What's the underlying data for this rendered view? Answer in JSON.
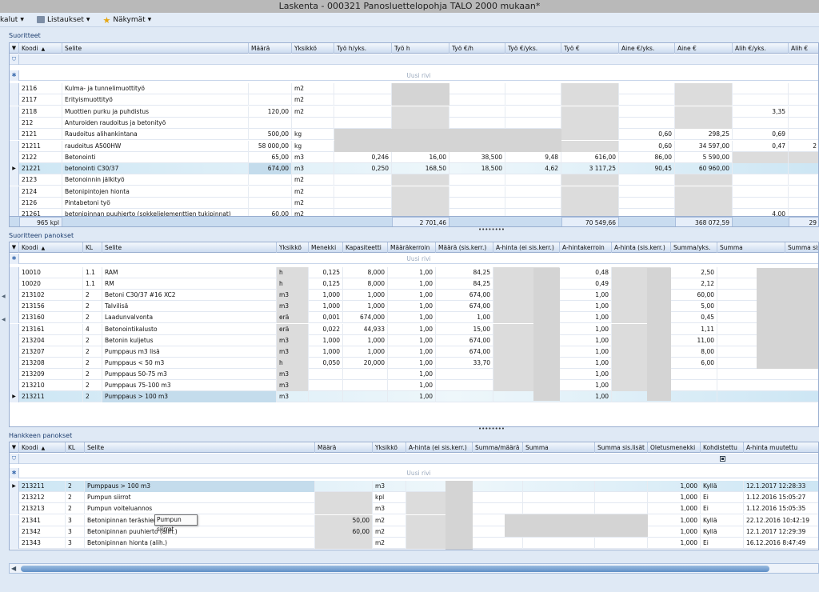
{
  "window": {
    "title": "Laskenta - 000321 Panosluettelopohja TALO 2000 mukaan*"
  },
  "menu": {
    "items": [
      {
        "label": "kalut",
        "icon": "tools-icon"
      },
      {
        "label": "Listaukset",
        "icon": "printer-icon"
      },
      {
        "label": "Näkymät",
        "icon": "star-icon"
      }
    ]
  },
  "suoritteet": {
    "title": "Suoritteet",
    "headers": [
      "Koodi",
      "Selite",
      "Määrä",
      "Yksikkö",
      "Työ h/yks.",
      "Työ h",
      "Työ €/h",
      "Työ €/yks.",
      "Työ €",
      "Aine €/yks.",
      "Aine €",
      "Alih €/yks.",
      "Alih €"
    ],
    "new_row": "Uusi rivi",
    "rows": [
      [
        "2116",
        "Kulma- ja tunnelimuottityö",
        "",
        "m2",
        "",
        "",
        "",
        "",
        "",
        "",
        "",
        "",
        ""
      ],
      [
        "2117",
        "Erityismuottityö",
        "",
        "m2",
        "",
        "",
        "",
        "",
        "",
        "",
        "",
        "",
        ""
      ],
      [
        "2118",
        "Muottien purku ja puhdistus",
        "120,00",
        "m2",
        "",
        "",
        "",
        "",
        "",
        "",
        "",
        "3,35",
        ""
      ],
      [
        "212",
        "Anturoiden raudoitus ja betonityö",
        "",
        "",
        "",
        "",
        "",
        "",
        "",
        "",
        "",
        "",
        ""
      ],
      [
        "2121",
        "Raudoitus alihankintana",
        "500,00",
        "kg",
        "",
        "",
        "",
        "",
        "",
        "0,60",
        "298,25",
        "0,69",
        ""
      ],
      [
        "21211",
        "raudoitus A500HW",
        "58 000,00",
        "kg",
        "",
        "",
        "",
        "",
        "",
        "0,60",
        "34 597,00",
        "0,47",
        "2"
      ],
      [
        "2122",
        "Betonointi",
        "65,00",
        "m3",
        "0,246",
        "16,00",
        "38,500",
        "9,48",
        "616,00",
        "86,00",
        "5 590,00",
        "",
        ""
      ],
      [
        "21221",
        "betonointi C30/37",
        "674,00",
        "m3",
        "0,250",
        "168,50",
        "18,500",
        "4,62",
        "3 117,25",
        "90,45",
        "60 960,00",
        "",
        ""
      ],
      [
        "2123",
        "Betonoinnin jälkityö",
        "",
        "m2",
        "",
        "",
        "",
        "",
        "",
        "",
        "",
        "",
        ""
      ],
      [
        "2124",
        "Betonipintojen hionta",
        "",
        "m2",
        "",
        "",
        "",
        "",
        "",
        "",
        "",
        "",
        ""
      ],
      [
        "2126",
        "Pintabetoni työ",
        "",
        "m2",
        "",
        "",
        "",
        "",
        "",
        "",
        "",
        "",
        ""
      ],
      [
        "21261",
        "betonipinnan puuhierto (sokkelielementtien tukipinnat)",
        "60,00",
        "m2",
        "",
        "",
        "",
        "",
        "",
        "",
        "",
        "4,00",
        ""
      ]
    ],
    "summary": {
      "count": "965 kpl",
      "tyo_h": "2 701,46",
      "tyo_eur": "70 549,66",
      "aine_eur": "368 072,59",
      "alih_eur": "29"
    }
  },
  "panokset": {
    "title": "Suoritteen panokset",
    "headers": [
      "Koodi",
      "KL",
      "Selite",
      "Yksikkö",
      "Menekki",
      "Kapasiteetti",
      "Määräkerroin",
      "Määrä (sis.kerr.)",
      "A-hinta (ei sis.kerr.)",
      "A-hintakerroin",
      "A-hinta (sis.kerr.)",
      "Summa/yks.",
      "Summa",
      "Summa sis.l"
    ],
    "new_row": "Uusi rivi",
    "rows": [
      [
        "10010",
        "1.1",
        "RAM",
        "h",
        "0,125",
        "8,000",
        "1,00",
        "84,25",
        "",
        "0,48",
        "",
        "2,50"
      ],
      [
        "10020",
        "1.1",
        "RM",
        "h",
        "0,125",
        "8,000",
        "1,00",
        "84,25",
        "",
        "0,49",
        "",
        "2,12"
      ],
      [
        "213102",
        "2",
        "Betoni C30/37 #16 XC2",
        "m3",
        "1,000",
        "1,000",
        "1,00",
        "674,00",
        "",
        "1,00",
        "",
        "60,00"
      ],
      [
        "213156",
        "2",
        "Talvilisä",
        "m3",
        "1,000",
        "1,000",
        "1,00",
        "674,00",
        "",
        "1,00",
        "",
        "5,00"
      ],
      [
        "213160",
        "2",
        "Laadunvalvonta",
        "erä",
        "0,001",
        "674,000",
        "1,00",
        "1,00",
        "",
        "1,00",
        "",
        "0,45"
      ],
      [
        "213161",
        "4",
        "Betonointikalusto",
        "erä",
        "0,022",
        "44,933",
        "1,00",
        "15,00",
        "",
        "1,00",
        "",
        "1,11"
      ],
      [
        "213204",
        "2",
        "Betonin kuljetus",
        "m3",
        "1,000",
        "1,000",
        "1,00",
        "674,00",
        "",
        "1,00",
        "",
        "11,00"
      ],
      [
        "213207",
        "2",
        "Pumppaus m3 lisä",
        "m3",
        "1,000",
        "1,000",
        "1,00",
        "674,00",
        "",
        "1,00",
        "",
        "8,00"
      ],
      [
        "213208",
        "2",
        "Pumppaus < 50 m3",
        "h",
        "0,050",
        "20,000",
        "1,00",
        "33,70",
        "",
        "1,00",
        "",
        "6,00"
      ],
      [
        "213209",
        "2",
        "Pumppaus 50-75 m3",
        "m3",
        "",
        "",
        "1,00",
        "",
        "",
        "1,00",
        "",
        ""
      ],
      [
        "213210",
        "2",
        "Pumppaus 75-100 m3",
        "m3",
        "",
        "",
        "1,00",
        "",
        "",
        "1,00",
        "",
        ""
      ],
      [
        "213211",
        "2",
        "Pumppaus > 100 m3",
        "m3",
        "",
        "",
        "1,00",
        "",
        "",
        "1,00",
        "",
        ""
      ]
    ]
  },
  "hankkeen": {
    "title": "Hankkeen panokset",
    "headers": [
      "Koodi",
      "KL",
      "Selite",
      "Määrä",
      "Yksikkö",
      "A-hinta (ei sis.kerr.)",
      "Summa/määrä",
      "Summa",
      "Summa sis.lisät",
      "Oletusmenekki",
      "Kohdistettu",
      "A-hinta muutettu"
    ],
    "new_row": "Uusi rivi",
    "rows": [
      [
        "213211",
        "2",
        "Pumppaus > 100 m3",
        "",
        "m3",
        "",
        "",
        "",
        "",
        "1,000",
        "Kyllä",
        "12.1.2017 12:28:33"
      ],
      [
        "213212",
        "2",
        "Pumpun siirrot",
        "",
        "kpl",
        "",
        "",
        "",
        "",
        "1,000",
        "Ei",
        "1.12.2016 15:05:27"
      ],
      [
        "213213",
        "2",
        "Pumpun voiteluannos",
        "",
        "m3",
        "",
        "",
        "",
        "",
        "1,000",
        "Ei",
        "1.12.2016 15:05:35"
      ],
      [
        "21341",
        "3",
        "Betonipinnan teräshierto",
        "50,00",
        "m2",
        "",
        "",
        "",
        "",
        "1,000",
        "Kyllä",
        "22.12.2016 10:42:19"
      ],
      [
        "21342",
        "3",
        "Betonipinnan puuhierto (alih.)",
        "60,00",
        "m2",
        "",
        "",
        "",
        "",
        "1,000",
        "Kyllä",
        "12.1.2017 12:29:39"
      ],
      [
        "21343",
        "3",
        "Betonipinnan hionta (alih.)",
        "",
        "m2",
        "",
        "",
        "",
        "",
        "1,000",
        "Ei",
        "16.12.2016 8:47:49"
      ]
    ]
  },
  "tooltip": {
    "text": "Pumpun siirrot"
  }
}
